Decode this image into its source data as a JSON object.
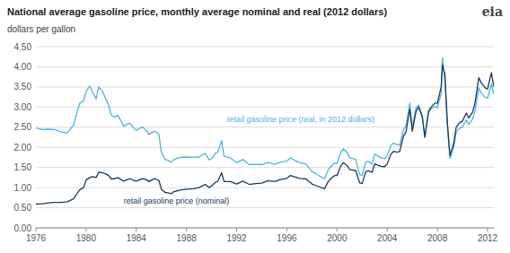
{
  "chart_data": {
    "type": "line",
    "title": "National average gasoline price, monthly average nominal and real (2012 dollars)",
    "ylabel": "dollars per gallon",
    "xlim": [
      1976,
      2012.5
    ],
    "ylim": [
      0.0,
      4.5
    ],
    "xticks": [
      1976,
      1980,
      1984,
      1988,
      1992,
      1996,
      2000,
      2004,
      2008,
      2012
    ],
    "yticks": [
      {
        "value": 0.0,
        "label": "0.00"
      },
      {
        "value": 0.5,
        "label": "0.50"
      },
      {
        "value": 1.0,
        "label": "1.00"
      },
      {
        "value": 1.5,
        "label": "1.50"
      },
      {
        "value": 2.0,
        "label": "2.00"
      },
      {
        "value": 2.5,
        "label": "2.50"
      },
      {
        "value": 3.0,
        "label": "3.00"
      },
      {
        "value": 3.5,
        "label": "3.50"
      },
      {
        "value": 4.0,
        "label": "4.00"
      },
      {
        "value": 4.5,
        "label": "4.50"
      }
    ],
    "grid": true,
    "x": [
      1976.0,
      1976.5,
      1977.0,
      1977.5,
      1978.0,
      1978.5,
      1979.0,
      1979.3,
      1979.5,
      1979.8,
      1980.0,
      1980.3,
      1980.5,
      1980.8,
      1981.0,
      1981.3,
      1981.5,
      1981.8,
      1982.0,
      1982.3,
      1982.5,
      1982.8,
      1983.0,
      1983.3,
      1983.5,
      1983.8,
      1984.0,
      1984.3,
      1984.5,
      1984.8,
      1985.0,
      1985.3,
      1985.5,
      1985.8,
      1986.0,
      1986.3,
      1986.5,
      1986.8,
      1987.0,
      1987.5,
      1988.0,
      1988.5,
      1989.0,
      1989.3,
      1989.5,
      1989.8,
      1990.0,
      1990.3,
      1990.5,
      1990.8,
      1991.0,
      1991.5,
      1992.0,
      1992.5,
      1993.0,
      1993.5,
      1994.0,
      1994.5,
      1995.0,
      1995.5,
      1996.0,
      1996.3,
      1996.5,
      1996.8,
      1997.0,
      1997.5,
      1998.0,
      1998.5,
      1999.0,
      1999.3,
      1999.5,
      1999.8,
      2000.0,
      2000.3,
      2000.5,
      2000.8,
      2001.0,
      2001.5,
      2001.8,
      2002.0,
      2002.3,
      2002.5,
      2002.8,
      2003.0,
      2003.3,
      2003.5,
      2003.8,
      2004.0,
      2004.3,
      2004.5,
      2004.8,
      2005.0,
      2005.3,
      2005.5,
      2005.8,
      2006.0,
      2006.3,
      2006.5,
      2006.8,
      2007.0,
      2007.3,
      2007.5,
      2007.8,
      2008.0,
      2008.3,
      2008.4,
      2008.6,
      2008.8,
      2009.0,
      2009.3,
      2009.5,
      2009.8,
      2010.0,
      2010.3,
      2010.5,
      2010.8,
      2011.0,
      2011.3,
      2011.5,
      2011.8,
      2012.0,
      2012.3,
      2012.5
    ],
    "series": [
      {
        "color": "#4db3e6",
        "values": [
          2.48,
          2.44,
          2.45,
          2.44,
          2.38,
          2.36,
          2.55,
          2.9,
          3.1,
          3.15,
          3.4,
          3.52,
          3.38,
          3.2,
          3.5,
          3.4,
          3.25,
          3.05,
          2.8,
          2.75,
          2.8,
          2.65,
          2.52,
          2.58,
          2.6,
          2.48,
          2.42,
          2.48,
          2.5,
          2.42,
          2.32,
          2.38,
          2.4,
          2.32,
          1.88,
          1.7,
          1.68,
          1.63,
          1.7,
          1.75,
          1.76,
          1.75,
          1.76,
          1.82,
          1.85,
          1.69,
          1.72,
          1.85,
          1.88,
          2.17,
          1.78,
          1.74,
          1.62,
          1.7,
          1.57,
          1.58,
          1.57,
          1.63,
          1.58,
          1.63,
          1.66,
          1.74,
          1.7,
          1.65,
          1.62,
          1.59,
          1.4,
          1.31,
          1.22,
          1.44,
          1.52,
          1.61,
          1.6,
          1.88,
          1.96,
          1.87,
          1.74,
          1.7,
          1.32,
          1.3,
          1.64,
          1.65,
          1.59,
          1.83,
          1.78,
          1.74,
          1.72,
          1.79,
          2.05,
          2.1,
          2.07,
          2.05,
          2.45,
          2.53,
          3.1,
          2.5,
          2.98,
          3.05,
          2.78,
          2.26,
          2.88,
          2.95,
          3.02,
          2.98,
          3.35,
          4.22,
          3.65,
          2.48,
          1.72,
          1.98,
          2.38,
          2.48,
          2.5,
          2.68,
          2.57,
          2.7,
          2.9,
          3.48,
          3.35,
          3.24,
          3.22,
          3.57,
          3.32
        ]
      },
      {
        "color": "#1a3a5c",
        "values": [
          0.59,
          0.6,
          0.62,
          0.63,
          0.63,
          0.65,
          0.72,
          0.86,
          0.95,
          1.0,
          1.19,
          1.25,
          1.27,
          1.25,
          1.38,
          1.37,
          1.35,
          1.3,
          1.22,
          1.22,
          1.25,
          1.2,
          1.16,
          1.2,
          1.22,
          1.18,
          1.16,
          1.2,
          1.22,
          1.2,
          1.15,
          1.2,
          1.22,
          1.18,
          0.96,
          0.88,
          0.87,
          0.85,
          0.9,
          0.94,
          0.96,
          0.97,
          1.0,
          1.05,
          1.08,
          1.0,
          1.04,
          1.13,
          1.16,
          1.37,
          1.15,
          1.15,
          1.09,
          1.16,
          1.08,
          1.1,
          1.11,
          1.17,
          1.15,
          1.2,
          1.23,
          1.3,
          1.28,
          1.25,
          1.23,
          1.22,
          1.09,
          1.03,
          0.97,
          1.15,
          1.22,
          1.3,
          1.3,
          1.54,
          1.62,
          1.55,
          1.45,
          1.42,
          1.12,
          1.1,
          1.4,
          1.42,
          1.38,
          1.59,
          1.55,
          1.53,
          1.52,
          1.59,
          1.83,
          1.9,
          1.88,
          1.9,
          2.28,
          2.38,
          2.95,
          2.4,
          2.9,
          3.0,
          2.75,
          2.25,
          2.9,
          3.0,
          3.1,
          3.1,
          3.5,
          4.05,
          3.8,
          2.6,
          1.8,
          2.1,
          2.5,
          2.62,
          2.65,
          2.85,
          2.73,
          2.87,
          3.1,
          3.73,
          3.6,
          3.48,
          3.45,
          3.85,
          3.5
        ]
      }
    ],
    "annotations": [
      {
        "text": "retail gasoline price (real,  in 2012 dollars)",
        "x": 1991.2,
        "y": 2.58,
        "color": "#4db3e6"
      },
      {
        "text": "retail gasoline price (nominal)",
        "x": 1983.0,
        "y": 0.56,
        "color": "#1a3a5c"
      },
      {
        "text": "eia"
      }
    ]
  }
}
